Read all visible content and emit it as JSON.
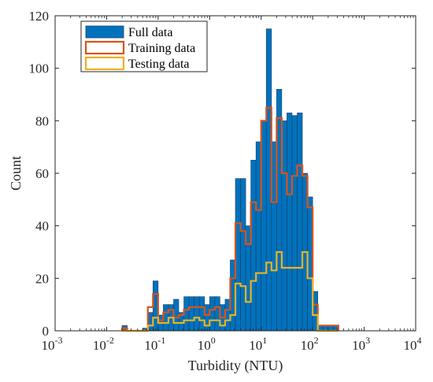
{
  "chart_data": {
    "type": "histogram",
    "xlabel": "Turbidity (NTU)",
    "ylabel": "Count",
    "xscale": "log",
    "xlim": [
      0.001,
      10000
    ],
    "ylim": [
      0,
      120
    ],
    "yticks": [
      0,
      20,
      40,
      60,
      80,
      100,
      120
    ],
    "xticks": [
      {
        "base": "10",
        "exp": "-3"
      },
      {
        "base": "10",
        "exp": "-2"
      },
      {
        "base": "10",
        "exp": "-1"
      },
      {
        "base": "10",
        "exp": "0"
      },
      {
        "base": "10",
        "exp": "1"
      },
      {
        "base": "10",
        "exp": "2"
      },
      {
        "base": "10",
        "exp": "3"
      },
      {
        "base": "10",
        "exp": "4"
      }
    ],
    "bin_width_log10": 0.1,
    "bin_start_log10": -1.7,
    "full_data_counts": [
      2,
      0,
      0,
      0,
      1,
      7,
      19,
      6,
      10,
      10,
      12,
      7,
      13,
      13,
      13,
      13,
      10,
      13,
      13,
      10,
      12,
      27,
      58,
      58,
      40,
      65,
      72,
      80,
      115,
      72,
      92,
      80,
      83,
      82,
      83,
      60,
      51,
      15,
      2,
      2,
      2,
      2
    ],
    "training_counts": [
      1,
      0,
      0,
      0,
      0,
      9,
      14,
      4,
      7,
      8,
      5,
      6,
      8,
      9,
      9,
      9,
      6,
      8,
      9,
      5,
      8,
      20,
      41,
      38,
      33,
      49,
      46,
      80,
      85,
      49,
      81,
      60,
      52,
      59,
      63,
      59,
      47,
      10,
      2,
      2,
      2,
      2
    ],
    "testing_counts": [
      0,
      0,
      0,
      0,
      0,
      2,
      5,
      3,
      3,
      5,
      3,
      3,
      4,
      4,
      5,
      4,
      2,
      4,
      4,
      2,
      4,
      6,
      18,
      17,
      11,
      19,
      22,
      22,
      26,
      23,
      30,
      24,
      24,
      24,
      24,
      30,
      20,
      6,
      0,
      0,
      0,
      0
    ],
    "series": [
      {
        "name": "Full data",
        "color": "#0072BD",
        "style": "filled bars"
      },
      {
        "name": "Training data",
        "color": "#D95319",
        "style": "step outline"
      },
      {
        "name": "Testing data",
        "color": "#EDB120",
        "style": "step outline"
      }
    ],
    "legend_location": "top-left",
    "grid": false,
    "box": true
  }
}
